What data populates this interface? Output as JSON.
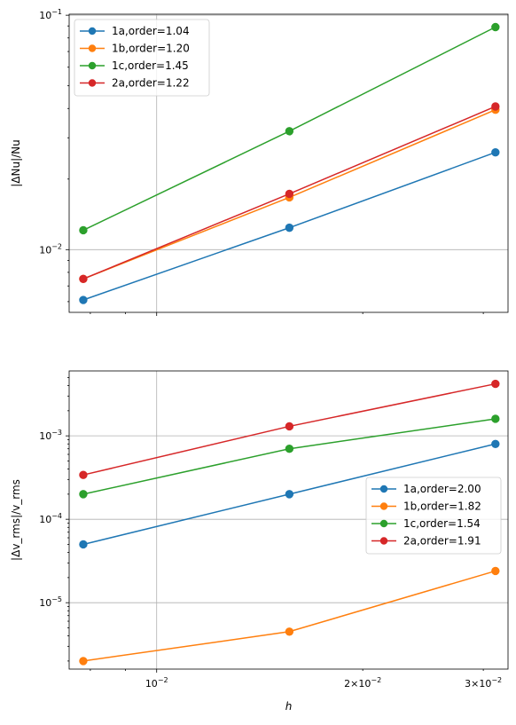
{
  "chart_data": [
    {
      "type": "line",
      "xscale": "log",
      "yscale": "log",
      "ylabel": "|ΔNu|/Nu",
      "xlabel": "",
      "xlim": [
        0.00745,
        0.0326
      ],
      "ylim": [
        0.0054,
        0.101
      ],
      "grid": true,
      "legend_position": "upper-left",
      "x": [
        0.0078125,
        0.015625,
        0.03125
      ],
      "yticks": [
        {
          "value": 0.01,
          "base": "10",
          "exp": "−2"
        },
        {
          "value": 0.1,
          "base": "10",
          "exp": "−1"
        }
      ],
      "xticks_major": [
        0.01
      ],
      "xticks_minor": [
        0.02,
        0.03
      ],
      "series": [
        {
          "name": "1a,order=1.04",
          "color": "#1f77b4",
          "values": [
            0.0061,
            0.0124,
            0.026
          ]
        },
        {
          "name": "1b,order=1.20",
          "color": "#ff7f0e",
          "values": [
            0.0075,
            0.0167,
            0.0395
          ]
        },
        {
          "name": "1c,order=1.45",
          "color": "#2ca02c",
          "values": [
            0.0121,
            0.032,
            0.089
          ]
        },
        {
          "name": "2a,order=1.22",
          "color": "#d62728",
          "values": [
            0.0075,
            0.0173,
            0.0408
          ]
        }
      ]
    },
    {
      "type": "line",
      "xscale": "log",
      "yscale": "log",
      "ylabel": "|Δv_rms|/v_rms",
      "xlabel": "h",
      "xlim": [
        0.00745,
        0.0326
      ],
      "ylim": [
        1.6e-06,
        0.006
      ],
      "grid": true,
      "legend_position": "center-right",
      "x": [
        0.0078125,
        0.015625,
        0.03125
      ],
      "yticks": [
        {
          "value": 1e-05,
          "base": "10",
          "exp": "−5"
        },
        {
          "value": 0.0001,
          "base": "10",
          "exp": "−4"
        },
        {
          "value": 0.001,
          "base": "10",
          "exp": "−3"
        }
      ],
      "xticks": [
        {
          "value": 0.01,
          "label": "10",
          "exp": "−2"
        },
        {
          "value": 0.02,
          "label": "2×10",
          "exp": "−2"
        },
        {
          "value": 0.03,
          "label": "3×10",
          "exp": "−2"
        }
      ],
      "series": [
        {
          "name": "1a,order=2.00",
          "color": "#1f77b4",
          "values": [
            5e-05,
            0.0002,
            0.0008
          ]
        },
        {
          "name": "1b,order=1.82",
          "color": "#ff7f0e",
          "values": [
            2e-06,
            4.5e-06,
            2.4e-05
          ]
        },
        {
          "name": "1c,order=1.54",
          "color": "#2ca02c",
          "values": [
            0.0002,
            0.0007,
            0.0016
          ]
        },
        {
          "name": "2a,order=1.91",
          "color": "#d62728",
          "values": [
            0.00034,
            0.0013,
            0.0042
          ]
        }
      ]
    }
  ]
}
